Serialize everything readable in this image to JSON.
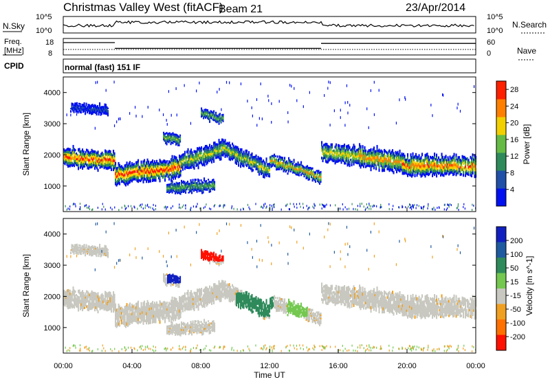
{
  "header": {
    "station": "Christmas Valley West (fitACF)",
    "beam": "Beam 21",
    "date": "23/Apr/2014"
  },
  "noise_panel": {
    "left_label": "N.Sky",
    "right_label": "N.Search",
    "y_ticks": [
      "10^5",
      "10^0"
    ]
  },
  "freq_panel": {
    "left_label_1": "Freq.",
    "left_label_2": "[MHz]",
    "left_ticks": [
      "18",
      "8"
    ],
    "right_label": "Nave",
    "right_ticks": [
      "60",
      "0"
    ]
  },
  "cpid": {
    "label": "CPID",
    "value": "normal (fast) 151 IF"
  },
  "chart_data": [
    {
      "type": "heatmap",
      "name": "Power",
      "ylabel": "Slant Range [km]",
      "xlabel": "Time UT",
      "ylim": [
        180,
        4500
      ],
      "xlim": [
        "00:00",
        "24:00"
      ],
      "y_ticks": [
        1000,
        2000,
        3000,
        4000
      ],
      "x_ticks": [
        "00:00",
        "04:00",
        "08:00",
        "12:00",
        "16:00",
        "20:00",
        "00:00"
      ],
      "colorbar": {
        "label": "Power [dB]",
        "ticks": [
          4,
          8,
          12,
          16,
          20,
          24,
          28
        ],
        "range": [
          0,
          30
        ],
        "colors": [
          "#0010f0",
          "#2050a8",
          "#2e8a5a",
          "#66bb44",
          "#f2d000",
          "#ff8000",
          "#ff2000"
        ]
      },
      "echo_bands": [
        {
          "t": [
            0.0,
            3.0
          ],
          "center": [
            1900,
            1750
          ],
          "width": 500,
          "peak_db": 26
        },
        {
          "t": [
            3.0,
            6.8
          ],
          "center": [
            1300,
            1550
          ],
          "width": 550,
          "peak_db": 27
        },
        {
          "t": [
            6.8,
            9.5
          ],
          "center": [
            1700,
            2200
          ],
          "width": 500,
          "peak_db": 18
        },
        {
          "t": [
            9.5,
            12.0
          ],
          "center": [
            2100,
            1450
          ],
          "width": 450,
          "peak_db": 18
        },
        {
          "t": [
            12.0,
            15.0
          ],
          "center": [
            1800,
            1250
          ],
          "width": 350,
          "peak_db": 22
        },
        {
          "t": [
            15.0,
            17.2
          ],
          "center": [
            2050,
            1900
          ],
          "width": 500,
          "peak_db": 20
        },
        {
          "t": [
            17.2,
            19.7
          ],
          "center": [
            1900,
            1700
          ],
          "width": 550,
          "peak_db": 24
        },
        {
          "t": [
            19.7,
            24.0
          ],
          "center": [
            1600,
            1600
          ],
          "width": 550,
          "peak_db": 25
        },
        {
          "t": [
            6.0,
            8.8
          ],
          "center": [
            900,
            1000
          ],
          "width": 300,
          "peak_db": 14
        },
        {
          "t": [
            5.8,
            6.8
          ],
          "center": [
            2550,
            2450
          ],
          "width": 300,
          "peak_db": 16
        },
        {
          "t": [
            8.0,
            9.3
          ],
          "center": [
            3300,
            3100
          ],
          "width": 250,
          "peak_db": 15
        },
        {
          "t": [
            0.4,
            2.6
          ],
          "center": [
            3500,
            3400
          ],
          "width": 250,
          "peak_db": 6
        }
      ]
    },
    {
      "type": "heatmap",
      "name": "Velocity",
      "ylabel": "Slant Range [km]",
      "xlabel": "Time UT",
      "ylim": [
        180,
        4500
      ],
      "xlim": [
        "00:00",
        "24:00"
      ],
      "y_ticks": [
        1000,
        2000,
        3000,
        4000
      ],
      "x_ticks": [
        "00:00",
        "04:00",
        "08:00",
        "12:00",
        "16:00",
        "20:00",
        "00:00"
      ],
      "colorbar": {
        "label": "Velocity [m s^-1]",
        "ticks": [
          200,
          100,
          50,
          15,
          -15,
          -50,
          -100,
          -200
        ],
        "range": [
          -250,
          250
        ],
        "colors": [
          "#1020c0",
          "#1e5aa0",
          "#2e8a5a",
          "#74c850",
          "#c8c8c0",
          "#f0a020",
          "#ff7000",
          "#ff1000"
        ]
      },
      "features": [
        {
          "t": [
            0.0,
            24.0
          ],
          "center_range_km": "follows power echoes",
          "value": "ground scatter (grey)"
        },
        {
          "t": [
            10.0,
            12.2
          ],
          "range_km": [
            1300,
            2100
          ],
          "value": 60
        },
        {
          "t": [
            13.0,
            14.2
          ],
          "range_km": [
            1300,
            1900
          ],
          "value": 40
        },
        {
          "t": [
            6.0,
            6.8
          ],
          "range_km": [
            2400,
            2800
          ],
          "value": 200
        },
        {
          "t": [
            8.0,
            9.3
          ],
          "range_km": [
            3100,
            3500
          ],
          "value": -200
        }
      ]
    }
  ],
  "x_axis_title": "Time UT"
}
